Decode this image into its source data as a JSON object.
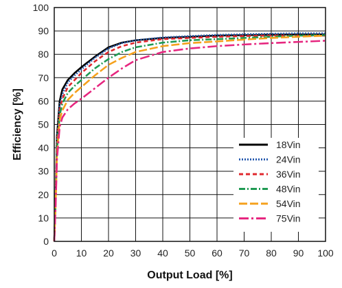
{
  "chart_data": {
    "type": "line",
    "title": "",
    "xlabel": "Output Load [%]",
    "ylabel": "Efficiency [%]",
    "xlim": [
      0,
      100
    ],
    "ylim": [
      0,
      100
    ],
    "x_ticks": [
      0,
      10,
      20,
      30,
      40,
      50,
      60,
      70,
      80,
      90,
      100
    ],
    "y_ticks": [
      0,
      10,
      20,
      30,
      40,
      50,
      60,
      70,
      80,
      90,
      100
    ],
    "grid": true,
    "legend_position": "bottom-right",
    "series": [
      {
        "name": "18Vin",
        "color": "#000000",
        "dash": "solid",
        "x": [
          0,
          0.5,
          1,
          2,
          3,
          5,
          7.5,
          10,
          15,
          20,
          25,
          30,
          40,
          50,
          60,
          70,
          80,
          90,
          100
        ],
        "y": [
          0,
          20,
          45,
          60,
          65,
          69,
          72,
          74.5,
          79,
          83,
          85,
          86,
          87,
          87.5,
          88,
          88.2,
          88.4,
          88.5,
          88.5
        ]
      },
      {
        "name": "24Vin",
        "color": "#2a5db0",
        "dash": "dotted",
        "x": [
          0,
          0.5,
          1,
          2,
          3,
          5,
          7.5,
          10,
          15,
          20,
          25,
          30,
          40,
          50,
          60,
          70,
          80,
          90,
          100
        ],
        "y": [
          0,
          19,
          43,
          58,
          63,
          68,
          71,
          73.5,
          78.5,
          82.5,
          84.8,
          86,
          87.2,
          87.8,
          88.3,
          88.6,
          88.8,
          89,
          89
        ]
      },
      {
        "name": "36Vin",
        "color": "#e0282e",
        "dash": "dashed",
        "x": [
          0,
          0.5,
          1,
          2,
          3,
          5,
          7.5,
          10,
          15,
          20,
          25,
          30,
          40,
          50,
          60,
          70,
          80,
          90,
          100
        ],
        "y": [
          0,
          18,
          41,
          56,
          61,
          66,
          69,
          72,
          77,
          81,
          83.5,
          85,
          86.5,
          87,
          87.5,
          87.8,
          88,
          88,
          88
        ]
      },
      {
        "name": "48Vin",
        "color": "#1f9a52",
        "dash": "dashdot",
        "x": [
          0,
          0.5,
          1,
          2,
          3,
          5,
          7.5,
          10,
          15,
          20,
          25,
          30,
          40,
          50,
          60,
          70,
          80,
          90,
          100
        ],
        "y": [
          0,
          17,
          39,
          54,
          59,
          63.5,
          66.5,
          69,
          74,
          78,
          81,
          83,
          85,
          86,
          86.5,
          87,
          87.5,
          88,
          88.2
        ]
      },
      {
        "name": "54Vin",
        "color": "#f5a11c",
        "dash": "longdash",
        "x": [
          0,
          0.5,
          1,
          2,
          3,
          5,
          7.5,
          10,
          15,
          20,
          25,
          30,
          40,
          50,
          60,
          70,
          80,
          90,
          100
        ],
        "y": [
          0,
          16,
          37,
          52,
          56,
          60.5,
          63.5,
          66,
          71,
          75.5,
          78.5,
          81,
          83.5,
          84.8,
          85.5,
          86.3,
          87,
          87.5,
          88
        ]
      },
      {
        "name": "75Vin",
        "color": "#e6267f",
        "dash": "dashdotlong",
        "x": [
          0,
          0.5,
          1,
          2,
          3,
          5,
          7.5,
          10,
          15,
          20,
          25,
          30,
          40,
          50,
          60,
          70,
          80,
          90,
          100
        ],
        "y": [
          0,
          15,
          35,
          49,
          53,
          56.5,
          59,
          61,
          65.5,
          70,
          74,
          77.5,
          81,
          82.5,
          83.5,
          84.2,
          84.8,
          85.3,
          85.8
        ]
      }
    ]
  }
}
